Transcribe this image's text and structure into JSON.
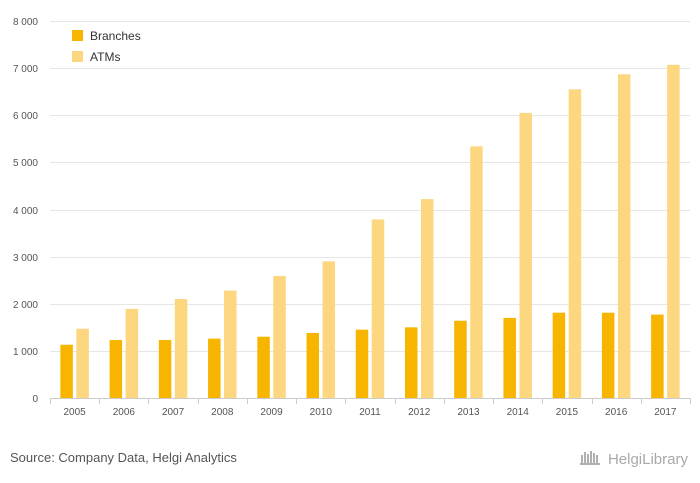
{
  "chart_data": {
    "type": "bar",
    "categories": [
      "2005",
      "2006",
      "2007",
      "2008",
      "2009",
      "2010",
      "2011",
      "2012",
      "2013",
      "2014",
      "2015",
      "2016",
      "2017"
    ],
    "series": [
      {
        "name": "Branches",
        "color": "#f7b500",
        "values": [
          1130,
          1230,
          1230,
          1260,
          1300,
          1380,
          1450,
          1500,
          1640,
          1700,
          1810,
          1810,
          1770
        ]
      },
      {
        "name": "ATMs",
        "color": "#fcd77f",
        "values": [
          1470,
          1890,
          2100,
          2280,
          2590,
          2900,
          3790,
          4220,
          5340,
          6050,
          6550,
          6870,
          7070
        ]
      }
    ],
    "ylim": [
      0,
      8000
    ],
    "yticks": [
      0,
      1000,
      2000,
      3000,
      4000,
      5000,
      6000,
      7000,
      8000
    ],
    "ytick_labels": [
      "0",
      "1 000",
      "2 000",
      "3 000",
      "4 000",
      "5 000",
      "6 000",
      "7 000",
      "8 000"
    ],
    "grid": true,
    "legend_position": "top-left",
    "title": "",
    "xlabel": "",
    "ylabel": ""
  },
  "footer": {
    "source": "Source: Company Data, Helgi Analytics",
    "brand": "HelgiLibrary",
    "brand_icon": "library-logo-icon"
  }
}
